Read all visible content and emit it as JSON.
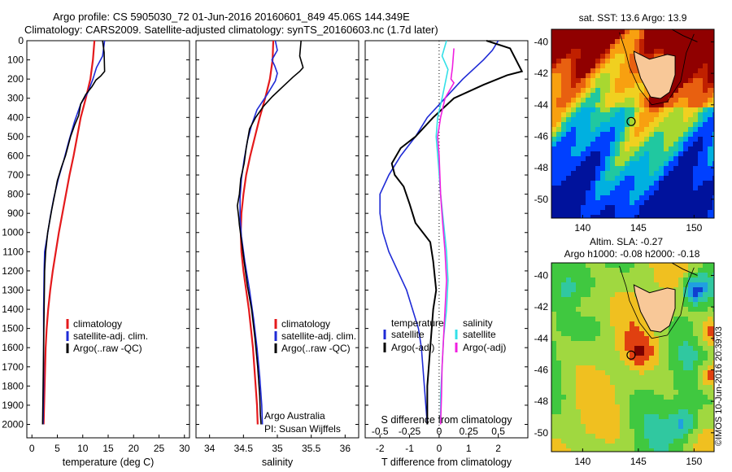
{
  "header": {
    "line1": "Argo profile: CS 5905030_72 01-Jun-2016 20160601_849 45.06S 144.349E",
    "line2": "Climatology: CARS2009. Satellite-adjusted climatology: synTS_20160603.nc (1.7d later)"
  },
  "colors": {
    "climatology": "#e41a1c",
    "satellite": "#1f2bd6",
    "argo": "#000000",
    "sat_salinity": "#33e0e8",
    "argo_adj_salinity": "#f020e0"
  },
  "chart_data": [
    {
      "type": "line",
      "panel": "temperature",
      "xlabel": "temperature (deg C)",
      "xlim": [
        -1,
        31
      ],
      "ylim": [
        2070,
        0
      ],
      "xticks": [
        "0",
        "5",
        "10",
        "15",
        "20",
        "25",
        "30"
      ],
      "yticks": [
        "0",
        "100",
        "200",
        "300",
        "400",
        "500",
        "600",
        "700",
        "800",
        "900",
        "1000",
        "1100",
        "1200",
        "1300",
        "1400",
        "1500",
        "1600",
        "1700",
        "1800",
        "1900",
        "2000"
      ],
      "legend": [
        "climatology",
        "satellite-adj. clim.",
        "Argo(..raw -QC)"
      ],
      "series": [
        {
          "name": "climatology",
          "points": [
            [
              12.3,
              0
            ],
            [
              12.0,
              100
            ],
            [
              11.5,
              200
            ],
            [
              10.6,
              300
            ],
            [
              9.6,
              400
            ],
            [
              8.9,
              500
            ],
            [
              8.2,
              600
            ],
            [
              7.4,
              700
            ],
            [
              6.7,
              800
            ],
            [
              6.0,
              900
            ],
            [
              5.3,
              1000
            ],
            [
              4.7,
              1100
            ],
            [
              4.1,
              1200
            ],
            [
              3.6,
              1300
            ],
            [
              3.2,
              1400
            ],
            [
              2.9,
              1500
            ],
            [
              2.7,
              1600
            ],
            [
              2.6,
              1700
            ],
            [
              2.5,
              1800
            ],
            [
              2.4,
              1900
            ],
            [
              2.3,
              2000
            ]
          ]
        },
        {
          "name": "satellite-adj. clim.",
          "points": [
            [
              14.3,
              0
            ],
            [
              13.9,
              80
            ],
            [
              12.7,
              140
            ],
            [
              12.0,
              200
            ],
            [
              11.0,
              270
            ],
            [
              9.6,
              330
            ],
            [
              8.4,
              420
            ],
            [
              7.3,
              520
            ],
            [
              6.3,
              620
            ],
            [
              5.2,
              720
            ],
            [
              4.3,
              820
            ],
            [
              3.6,
              920
            ],
            [
              3.0,
              1020
            ],
            [
              2.5,
              1100
            ],
            [
              2.4,
              1200
            ],
            [
              2.3,
              1400
            ],
            [
              2.3,
              1600
            ],
            [
              2.3,
              1800
            ],
            [
              2.2,
              2000
            ]
          ]
        },
        {
          "name": "Argo(..raw -QC)",
          "points": [
            [
              13.9,
              0
            ],
            [
              14.2,
              60
            ],
            [
              14.3,
              160
            ],
            [
              13.5,
              185
            ],
            [
              12.6,
              205
            ],
            [
              11.8,
              240
            ],
            [
              10.6,
              280
            ],
            [
              9.6,
              330
            ],
            [
              9.2,
              390
            ],
            [
              8.4,
              440
            ],
            [
              7.6,
              500
            ],
            [
              7.0,
              560
            ],
            [
              6.6,
              600
            ],
            [
              5.8,
              660
            ],
            [
              5.0,
              730
            ],
            [
              4.5,
              800
            ],
            [
              3.9,
              880
            ],
            [
              3.5,
              940
            ],
            [
              3.1,
              1000
            ],
            [
              2.7,
              1100
            ],
            [
              2.5,
              1200
            ],
            [
              2.4,
              1400
            ],
            [
              2.3,
              1600
            ],
            [
              2.2,
              1800
            ],
            [
              2.1,
              2000
            ]
          ]
        }
      ]
    },
    {
      "type": "line",
      "panel": "salinity",
      "xlabel": "salinity",
      "xlim": [
        33.8,
        36.2
      ],
      "ylim": [
        2070,
        0
      ],
      "xticks": [
        "34",
        "34.5",
        "35",
        "35.5",
        "36"
      ],
      "legend": [
        "climatology",
        "satellite-adj. clim.",
        "Argo(..raw -QC)"
      ],
      "annotation": [
        "Argo Australia",
        "PI: Susan Wijffels"
      ],
      "series": [
        {
          "name": "climatology",
          "points": [
            [
              34.94,
              0
            ],
            [
              34.93,
              100
            ],
            [
              34.89,
              200
            ],
            [
              34.82,
              300
            ],
            [
              34.74,
              400
            ],
            [
              34.67,
              500
            ],
            [
              34.6,
              600
            ],
            [
              34.54,
              700
            ],
            [
              34.5,
              800
            ],
            [
              34.47,
              900
            ],
            [
              34.46,
              1000
            ],
            [
              34.47,
              1100
            ],
            [
              34.5,
              1200
            ],
            [
              34.54,
              1300
            ],
            [
              34.58,
              1400
            ],
            [
              34.61,
              1500
            ],
            [
              34.64,
              1600
            ],
            [
              34.66,
              1700
            ],
            [
              34.68,
              1800
            ],
            [
              34.7,
              1900
            ],
            [
              34.71,
              2000
            ]
          ]
        },
        {
          "name": "satellite-adj. clim.",
          "points": [
            [
              34.97,
              0
            ],
            [
              35.0,
              50
            ],
            [
              34.92,
              100
            ],
            [
              34.96,
              130
            ],
            [
              35.0,
              170
            ],
            [
              34.97,
              210
            ],
            [
              34.85,
              280
            ],
            [
              34.7,
              360
            ],
            [
              34.62,
              440
            ],
            [
              34.56,
              520
            ],
            [
              34.51,
              620
            ],
            [
              34.47,
              720
            ],
            [
              34.45,
              820
            ],
            [
              34.45,
              920
            ],
            [
              34.47,
              1020
            ],
            [
              34.52,
              1150
            ],
            [
              34.59,
              1300
            ],
            [
              34.65,
              1450
            ],
            [
              34.7,
              1600
            ],
            [
              34.74,
              1750
            ],
            [
              34.77,
              1900
            ],
            [
              34.78,
              2000
            ]
          ]
        },
        {
          "name": "Argo(..raw -QC)",
          "points": [
            [
              35.35,
              0
            ],
            [
              35.33,
              80
            ],
            [
              35.38,
              140
            ],
            [
              35.33,
              160
            ],
            [
              35.23,
              190
            ],
            [
              35.08,
              240
            ],
            [
              34.93,
              290
            ],
            [
              34.8,
              340
            ],
            [
              34.68,
              400
            ],
            [
              34.59,
              460
            ],
            [
              34.54,
              560
            ],
            [
              34.51,
              640
            ],
            [
              34.46,
              720
            ],
            [
              34.44,
              800
            ],
            [
              34.41,
              860
            ],
            [
              34.43,
              920
            ],
            [
              34.44,
              960
            ],
            [
              34.47,
              1040
            ],
            [
              34.51,
              1150
            ],
            [
              34.56,
              1280
            ],
            [
              34.62,
              1400
            ],
            [
              34.67,
              1550
            ],
            [
              34.71,
              1700
            ],
            [
              34.74,
              1850
            ],
            [
              34.75,
              1950
            ],
            [
              34.76,
              2000
            ]
          ]
        }
      ]
    },
    {
      "type": "line",
      "panel": "difference",
      "xlabel": "T difference from climatology",
      "top_label": "S difference from climatology",
      "xlim": [
        -2.5,
        3.0
      ],
      "ylim": [
        2070,
        0
      ],
      "xticks": [
        "-2",
        "-1",
        "0",
        "1",
        "2"
      ],
      "sticks": [
        "-0.5",
        "-0.25",
        "0",
        "0.25",
        "0.5"
      ],
      "legend_left": {
        "title": "temperature",
        "items": [
          "satellite",
          "Argo(-adj)"
        ]
      },
      "legend_right": {
        "title": "salinity",
        "items": [
          "satellite",
          "Argo(-adj)"
        ]
      },
      "series": [
        {
          "name": "satellite",
          "points": [
            [
              2.0,
              0
            ],
            [
              1.8,
              50
            ],
            [
              1.5,
              100
            ],
            [
              0.8,
              200
            ],
            [
              0.2,
              300
            ],
            [
              -0.4,
              400
            ],
            [
              -0.8,
              500
            ],
            [
              -1.3,
              600
            ],
            [
              -1.7,
              700
            ],
            [
              -2.0,
              800
            ],
            [
              -2.0,
              900
            ],
            [
              -1.9,
              1000
            ],
            [
              -1.7,
              1100
            ],
            [
              -1.4,
              1200
            ],
            [
              -1.1,
              1300
            ],
            [
              -0.9,
              1400
            ],
            [
              -0.7,
              1500
            ],
            [
              -0.6,
              1600
            ],
            [
              -0.5,
              1800
            ],
            [
              -0.4,
              2000
            ]
          ]
        },
        {
          "name": "Argo(-adj)",
          "points": [
            [
              1.6,
              0
            ],
            [
              2.4,
              40
            ],
            [
              2.8,
              160
            ],
            [
              2.3,
              180
            ],
            [
              1.5,
              230
            ],
            [
              0.5,
              300
            ],
            [
              -0.2,
              400
            ],
            [
              -0.8,
              500
            ],
            [
              -1.3,
              560
            ],
            [
              -1.6,
              640
            ],
            [
              -1.5,
              700
            ],
            [
              -1.2,
              760
            ],
            [
              -1.0,
              850
            ],
            [
              -0.8,
              950
            ],
            [
              -0.3,
              1050
            ],
            [
              -0.2,
              1150
            ],
            [
              -0.1,
              1300
            ],
            [
              -0.2,
              1400
            ],
            [
              -0.3,
              1600
            ],
            [
              -0.4,
              1800
            ],
            [
              -0.4,
              2000
            ]
          ]
        },
        {
          "name": "satellite",
          "points": [
            [
              0.25,
              0
            ],
            [
              0.1,
              80
            ],
            [
              0.3,
              150
            ],
            [
              0.1,
              300
            ],
            [
              -0.05,
              400
            ],
            [
              -0.1,
              500
            ],
            [
              -0.02,
              650
            ],
            [
              0.05,
              800
            ],
            [
              0.15,
              950
            ],
            [
              0.25,
              1100
            ],
            [
              0.3,
              1250
            ],
            [
              0.25,
              1400
            ],
            [
              0.15,
              1550
            ],
            [
              0.1,
              1700
            ],
            [
              0.05,
              1850
            ],
            [
              0.05,
              2000
            ]
          ]
        },
        {
          "name": "Argo(-adj)",
          "points": [
            [
              0.5,
              40
            ],
            [
              0.45,
              140
            ],
            [
              0.4,
              200
            ],
            [
              0.5,
              220
            ],
            [
              0.2,
              300
            ],
            [
              0.05,
              400
            ],
            [
              -0.05,
              500
            ],
            [
              0.0,
              600
            ],
            [
              0.05,
              800
            ],
            [
              0.12,
              950
            ],
            [
              0.2,
              1100
            ],
            [
              0.25,
              1250
            ],
            [
              0.2,
              1400
            ],
            [
              0.15,
              1550
            ],
            [
              0.1,
              1700
            ],
            [
              0.08,
              1850
            ],
            [
              0.05,
              2000
            ]
          ]
        }
      ]
    }
  ],
  "maps": {
    "sst_title": "sat. SST: 13.6  Argo: 13.9",
    "sla_title1": "Altim. SLA: -0.27",
    "sla_title2": "Argo h1000: -0.08 h2000: -0.18",
    "lat_ticks": [
      "-40",
      "-42",
      "-44",
      "-46",
      "-48",
      "-50"
    ],
    "lon_ticks": [
      "140",
      "145",
      "150"
    ],
    "float_position": {
      "lon": 144.349,
      "lat": -45.06
    },
    "side_stamp": "©IMOS 10-Jun-2016 20:39:03"
  }
}
